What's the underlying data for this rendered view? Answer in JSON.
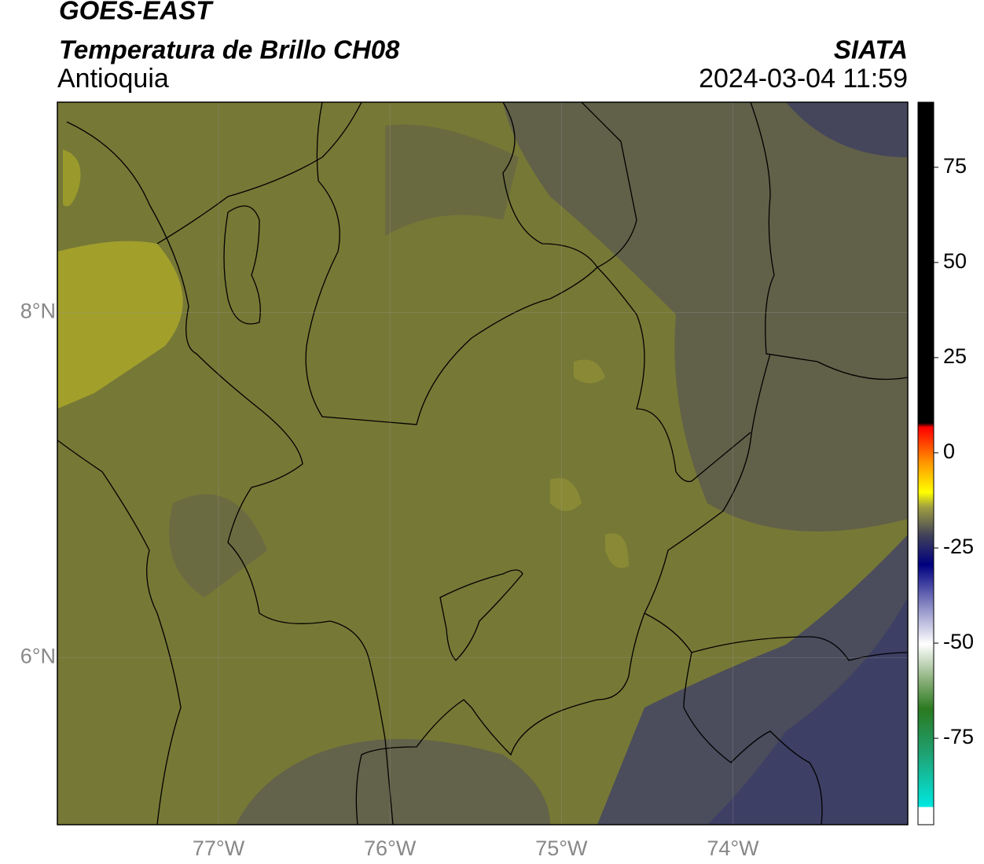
{
  "header": {
    "title": "GOES-EAST",
    "subtitle": "Temperatura de Brillo CH08",
    "region": "Antioquia",
    "source": "SIATA",
    "datetime": "2024-03-04 11:59"
  },
  "chart_data": {
    "type": "map",
    "xlim": [
      -77.94,
      -72.98
    ],
    "ylim": [
      5.03,
      9.22
    ],
    "xticks": [
      {
        "value": -77,
        "label": "77°W"
      },
      {
        "value": -76,
        "label": "76°W"
      },
      {
        "value": -75,
        "label": "75°W"
      },
      {
        "value": -74,
        "label": "74°W"
      }
    ],
    "yticks": [
      {
        "value": 6,
        "label": "6°N"
      },
      {
        "value": 8,
        "label": "8°N"
      }
    ],
    "grid": true,
    "colorbar": {
      "lim": [
        -97.7,
        92.1
      ],
      "ticks": [
        -75,
        -50,
        -25,
        0,
        25,
        50,
        75
      ]
    }
  }
}
